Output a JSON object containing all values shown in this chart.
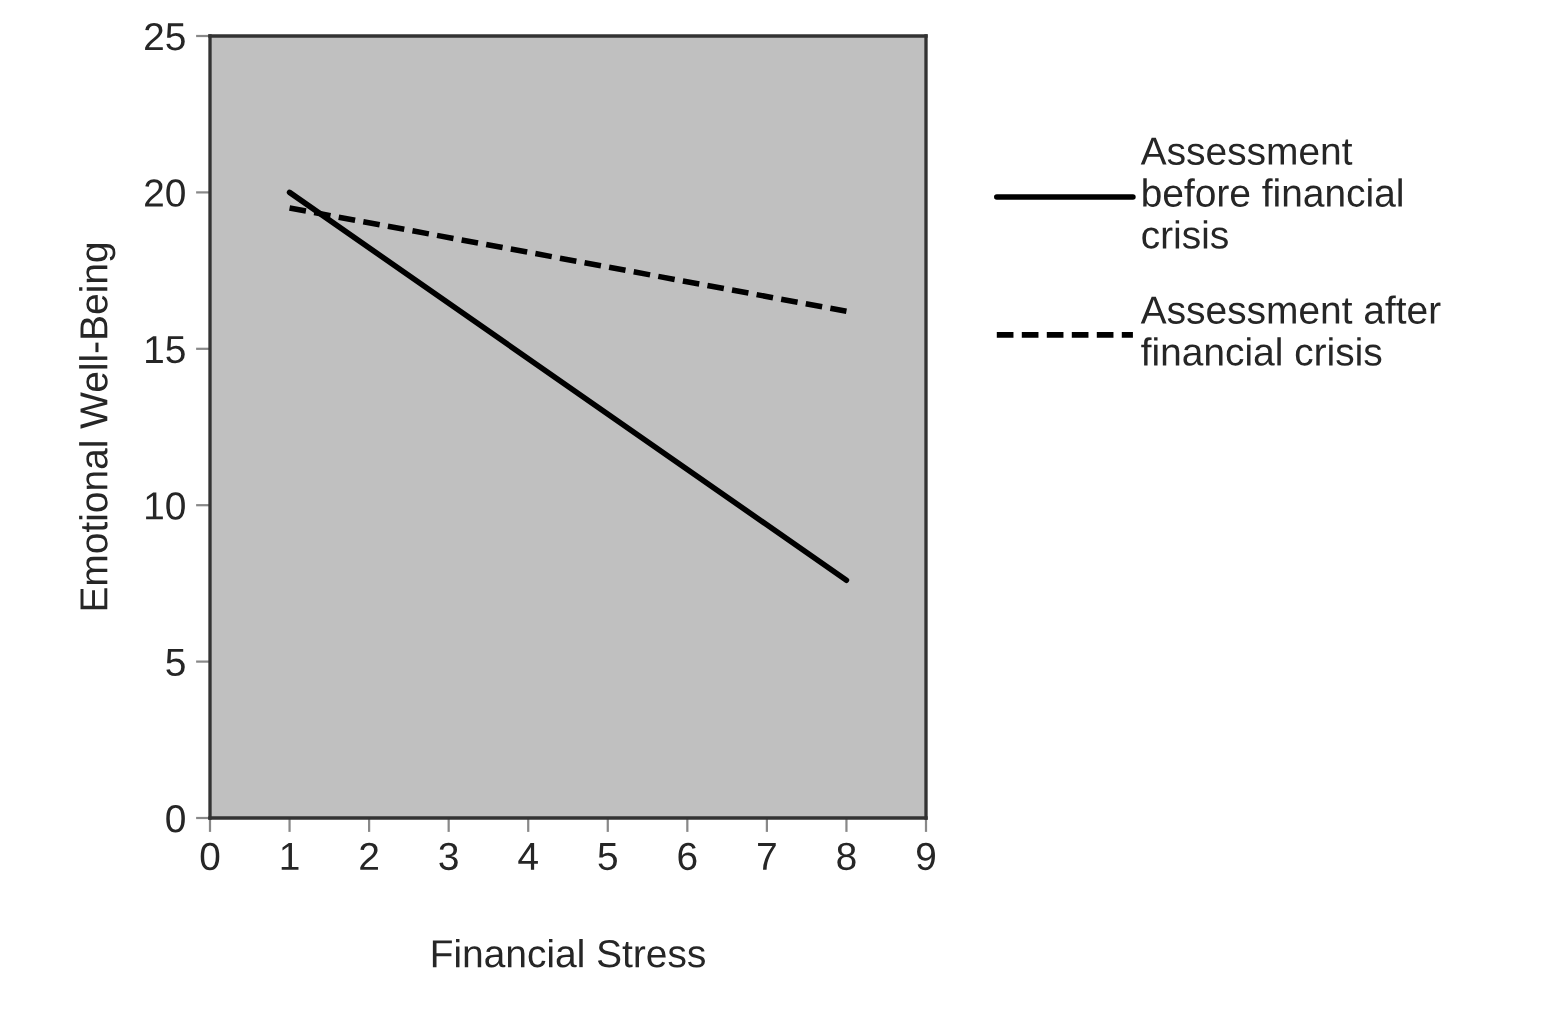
{
  "chart_data": {
    "type": "line",
    "xlabel": "Financial Stress",
    "ylabel": "Emotional Well-Being",
    "x": [
      1,
      8
    ],
    "series": [
      {
        "name": "Assessment before financial crisis",
        "color": "#000000",
        "values": [
          20,
          7.6
        ],
        "line_style": "solid"
      },
      {
        "name": "Assessment after financial crisis",
        "color": "#000000",
        "values": [
          19.5,
          16.2
        ],
        "line_style": "dashed"
      }
    ],
    "xlim": [
      0,
      9
    ],
    "xticks": [
      0,
      1,
      2,
      3,
      4,
      5,
      6,
      7,
      8,
      9
    ],
    "ylim": [
      0,
      25
    ],
    "yticks": [
      0,
      5,
      10,
      15,
      20,
      25
    ],
    "grid": false,
    "legend": "right",
    "marker": "none"
  }
}
